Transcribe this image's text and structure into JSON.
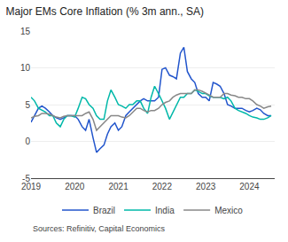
{
  "chart_data": {
    "type": "line",
    "title": "Major EMs Core Inflation (% 3m ann., SA)",
    "annotations": [
      "Sources: Refinitiv, Capital Economics"
    ],
    "x": [
      2019.0,
      2019.08,
      2019.17,
      2019.25,
      2019.33,
      2019.42,
      2019.5,
      2019.58,
      2019.67,
      2019.75,
      2019.83,
      2019.92,
      2020.0,
      2020.08,
      2020.17,
      2020.25,
      2020.33,
      2020.42,
      2020.5,
      2020.58,
      2020.67,
      2020.75,
      2020.83,
      2020.92,
      2021.0,
      2021.08,
      2021.17,
      2021.25,
      2021.33,
      2021.42,
      2021.5,
      2021.58,
      2021.67,
      2021.75,
      2021.83,
      2021.92,
      2022.0,
      2022.08,
      2022.17,
      2022.25,
      2022.33,
      2022.42,
      2022.5,
      2022.58,
      2022.67,
      2022.75,
      2022.83,
      2022.92,
      2023.0,
      2023.08,
      2023.17,
      2023.25,
      2023.33,
      2023.42,
      2023.5,
      2023.58,
      2023.67,
      2023.75,
      2023.83,
      2023.92,
      2024.0,
      2024.08,
      2024.17,
      2024.25,
      2024.33,
      2024.42,
      2024.5
    ],
    "series": [
      {
        "name": "Brazil",
        "color": "#2255cc",
        "values": [
          2.6,
          3.5,
          4.5,
          4.8,
          4.5,
          4.0,
          3.5,
          3.2,
          3.0,
          3.2,
          3.5,
          3.5,
          3.5,
          3.0,
          2.0,
          1.5,
          3.0,
          0.5,
          -1.5,
          -1.0,
          -0.5,
          1.0,
          2.0,
          2.5,
          1.5,
          2.0,
          3.5,
          4.0,
          4.5,
          5.0,
          5.5,
          5.8,
          5.5,
          5.5,
          5.5,
          6.0,
          9.8,
          10.0,
          9.0,
          8.8,
          8.5,
          12.0,
          12.8,
          9.5,
          8.5,
          8.0,
          6.5,
          6.0,
          6.0,
          5.5,
          8.0,
          7.8,
          7.5,
          6.5,
          5.0,
          4.8,
          4.5,
          4.5,
          4.5,
          4.2,
          4.0,
          4.2,
          4.5,
          4.3,
          3.8,
          3.5,
          3.5
        ]
      },
      {
        "name": "India",
        "color": "#00b8a9",
        "values": [
          6.0,
          5.5,
          4.5,
          4.2,
          4.0,
          3.5,
          3.5,
          2.5,
          2.0,
          3.0,
          3.5,
          3.5,
          3.3,
          4.5,
          6.0,
          5.8,
          5.0,
          4.5,
          3.5,
          3.0,
          3.0,
          5.5,
          7.0,
          6.0,
          5.0,
          4.8,
          4.5,
          5.0,
          5.0,
          5.5,
          5.5,
          4.5,
          3.8,
          6.0,
          7.5,
          6.5,
          5.5,
          4.5,
          3.0,
          4.0,
          5.0,
          6.0,
          6.0,
          6.5,
          6.5,
          7.0,
          6.8,
          6.5,
          6.5,
          6.2,
          6.0,
          6.0,
          6.0,
          5.8,
          6.0,
          5.5,
          4.5,
          4.2,
          4.0,
          3.8,
          3.5,
          3.3,
          3.2,
          3.0,
          3.0,
          3.2,
          3.5
        ]
      },
      {
        "name": "Mexico",
        "color": "#888888",
        "values": [
          3.2,
          3.4,
          3.5,
          3.8,
          3.8,
          3.7,
          3.5,
          3.3,
          3.2,
          3.4,
          3.5,
          3.5,
          3.5,
          3.5,
          3.5,
          3.8,
          4.0,
          3.0,
          1.5,
          2.0,
          2.5,
          3.0,
          3.5,
          3.5,
          3.5,
          3.3,
          3.2,
          3.5,
          4.0,
          4.5,
          4.5,
          4.2,
          4.0,
          4.2,
          4.2,
          4.5,
          5.0,
          5.3,
          5.5,
          6.0,
          6.3,
          6.5,
          6.5,
          6.5,
          6.5,
          7.0,
          7.0,
          6.8,
          6.5,
          6.3,
          6.0,
          6.0,
          6.0,
          6.5,
          6.5,
          6.3,
          6.2,
          6.0,
          6.0,
          5.8,
          5.8,
          5.5,
          5.0,
          4.8,
          4.5,
          4.7,
          4.8
        ]
      }
    ],
    "xlim": [
      2019.0,
      2024.58
    ],
    "xticks": [
      2019,
      2020,
      2021,
      2022,
      2023,
      2024
    ],
    "ylim": [
      -5,
      15
    ],
    "yticks": [
      -5,
      0,
      5,
      10,
      15
    ],
    "grid": "y",
    "legend": "bottom"
  }
}
